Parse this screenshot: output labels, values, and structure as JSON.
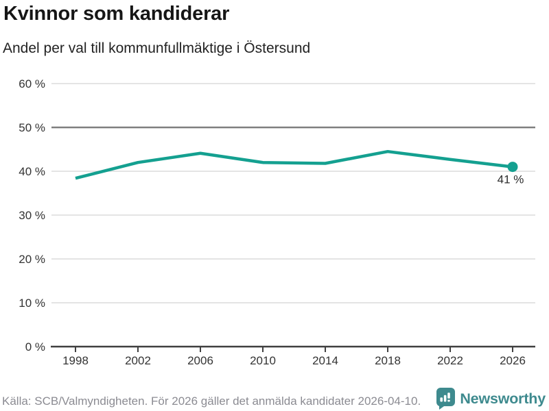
{
  "header": {
    "title": "Kvinnor som kandiderar",
    "subtitle": "Andel per val till kommunfullmäktige i Östersund"
  },
  "chart_data": {
    "type": "line",
    "title": "Kvinnor som kandiderar",
    "subtitle": "Andel per val till kommunfullmäktige i Östersund",
    "categories": [
      "1998",
      "2002",
      "2006",
      "2010",
      "2014",
      "2018",
      "2022",
      "2026"
    ],
    "values": [
      38.4,
      42.0,
      44.1,
      42.0,
      41.8,
      44.5,
      42.7,
      41.0
    ],
    "end_label": "41 %",
    "xlabel": "",
    "ylabel": "",
    "ylim": [
      0,
      60
    ],
    "y_ticks": [
      0,
      10,
      20,
      30,
      40,
      50,
      60
    ],
    "y_tick_labels": [
      "0 %",
      "10 %",
      "20 %",
      "30 %",
      "40 %",
      "50 %",
      "60 %"
    ],
    "reference_line": 50,
    "grid": true,
    "legend": "none",
    "line_color": "#14a090",
    "grid_color": "#dcdcdc",
    "reference_line_color": "#7f7f7f",
    "axis_color": "#3f3f3f"
  },
  "footer": {
    "source": "Källa: SCB/Valmyndigheten. För 2026 gäller det anmälda kandidater 2026-04-10.",
    "brand": "Newsworthy",
    "brand_color": "#3e8a8e"
  }
}
